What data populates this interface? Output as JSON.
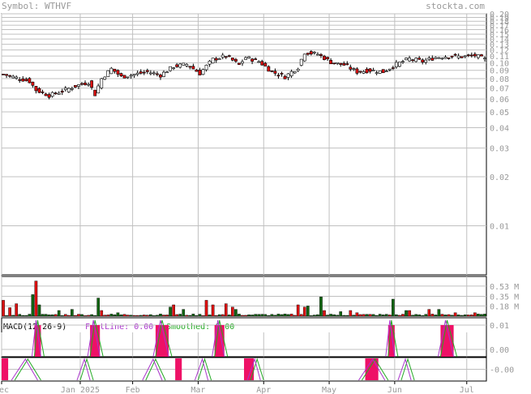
{
  "header": {
    "symbol_label": "Symbol: WTHVF",
    "site": "stockta.com"
  },
  "chart_data": [
    {
      "type": "candlestick",
      "scale": "log",
      "ylim": [
        0.005,
        0.2
      ],
      "yticks": [
        "0.20",
        "0.19",
        "0.18",
        "0.17",
        "0.16",
        "0.15",
        "0.14",
        "0.13",
        "0.12",
        "0.11",
        "0.10",
        "0.09",
        "0.08",
        "0.07",
        "0.06",
        "0.05",
        "0.04",
        "0.03",
        "0.02",
        "0.01"
      ],
      "ytick_values": [
        0.2,
        0.19,
        0.18,
        0.17,
        0.16,
        0.15,
        0.14,
        0.13,
        0.12,
        0.11,
        0.1,
        0.09,
        0.08,
        0.07,
        0.06,
        0.05,
        0.04,
        0.03,
        0.02,
        0.01
      ],
      "xlabels": [
        "Dec",
        "Jan 2025",
        "Feb",
        "Mar",
        "Apr",
        "May",
        "Jun",
        "Jul"
      ],
      "xlabel_index": [
        0,
        24,
        40,
        60,
        80,
        100,
        120,
        142
      ],
      "n": 148,
      "anchors": [
        [
          0,
          0.085
        ],
        [
          4,
          0.081
        ],
        [
          8,
          0.077
        ],
        [
          10,
          0.068
        ],
        [
          14,
          0.063
        ],
        [
          18,
          0.067
        ],
        [
          22,
          0.072
        ],
        [
          26,
          0.076
        ],
        [
          28,
          0.064
        ],
        [
          30,
          0.08
        ],
        [
          33,
          0.092
        ],
        [
          36,
          0.082
        ],
        [
          40,
          0.085
        ],
        [
          44,
          0.088
        ],
        [
          48,
          0.084
        ],
        [
          52,
          0.095
        ],
        [
          56,
          0.098
        ],
        [
          60,
          0.086
        ],
        [
          64,
          0.105
        ],
        [
          68,
          0.11
        ],
        [
          72,
          0.097
        ],
        [
          74,
          0.108
        ],
        [
          78,
          0.102
        ],
        [
          82,
          0.088
        ],
        [
          86,
          0.082
        ],
        [
          90,
          0.094
        ],
        [
          92,
          0.116
        ],
        [
          96,
          0.113
        ],
        [
          100,
          0.101
        ],
        [
          104,
          0.097
        ],
        [
          108,
          0.088
        ],
        [
          112,
          0.09
        ],
        [
          116,
          0.088
        ],
        [
          120,
          0.098
        ],
        [
          124,
          0.106
        ],
        [
          128,
          0.102
        ],
        [
          132,
          0.108
        ],
        [
          136,
          0.11
        ],
        [
          140,
          0.109
        ],
        [
          144,
          0.111
        ],
        [
          147,
          0.105
        ]
      ]
    },
    {
      "type": "bar",
      "name": "volume",
      "yticks": [
        "0.53 M",
        "0.35 M",
        "0.18 M"
      ],
      "ytick_values": [
        0.53,
        0.35,
        0.18
      ],
      "ylim": [
        0,
        0.7
      ],
      "spikes": [
        [
          0,
          0.28
        ],
        [
          2,
          0.15
        ],
        [
          4,
          0.22
        ],
        [
          9,
          0.38
        ],
        [
          10,
          0.62
        ],
        [
          11,
          0.2
        ],
        [
          17,
          0.1
        ],
        [
          21,
          0.12
        ],
        [
          29,
          0.32
        ],
        [
          30,
          0.1
        ],
        [
          35,
          0.06
        ],
        [
          51,
          0.16
        ],
        [
          52,
          0.2
        ],
        [
          55,
          0.12
        ],
        [
          62,
          0.28
        ],
        [
          64,
          0.2
        ],
        [
          68,
          0.22
        ],
        [
          70,
          0.16
        ],
        [
          71,
          0.12
        ],
        [
          90,
          0.2
        ],
        [
          92,
          0.16
        ],
        [
          93,
          0.18
        ],
        [
          97,
          0.34
        ],
        [
          98,
          0.1
        ],
        [
          103,
          0.08
        ],
        [
          106,
          0.1
        ],
        [
          108,
          0.06
        ],
        [
          119,
          0.3
        ],
        [
          123,
          0.1
        ],
        [
          124,
          0.1
        ],
        [
          130,
          0.12
        ],
        [
          133,
          0.12
        ],
        [
          138,
          0.06
        ],
        [
          144,
          0.06
        ]
      ]
    },
    {
      "type": "line",
      "name": "MACD(12-26-9)",
      "title": "MACD(12-26-9)",
      "fast_label": "FastLine: 0.00",
      "smooth_label": "Smoothed: 0.00",
      "yticks": [
        "0.01",
        "0.00"
      ],
      "ytick_values": [
        0.01,
        0.0
      ],
      "ylim": [
        -0.003,
        0.013
      ],
      "highlight_ranges": [
        [
          10,
          11
        ],
        [
          27,
          29
        ],
        [
          47,
          50
        ],
        [
          65,
          67
        ],
        [
          118,
          119
        ],
        [
          134,
          137
        ]
      ]
    },
    {
      "type": "line",
      "name": "stochastic",
      "yticks": [
        "-0.00"
      ],
      "ytick_values": [
        0.0
      ],
      "ylim": [
        -0.02,
        0.02
      ],
      "highlight_ranges": [
        [
          0,
          1
        ],
        [
          53,
          54
        ],
        [
          74,
          76
        ],
        [
          111,
          114
        ]
      ]
    }
  ],
  "colors": {
    "up": "#ffffff",
    "down": "#dd1111",
    "vol_up": "#116611",
    "vol_down": "#dd1111",
    "highlight": "#ee1166",
    "fast": "#aa33cc",
    "smooth": "#22aa22",
    "grid": "#c0c0c0"
  }
}
